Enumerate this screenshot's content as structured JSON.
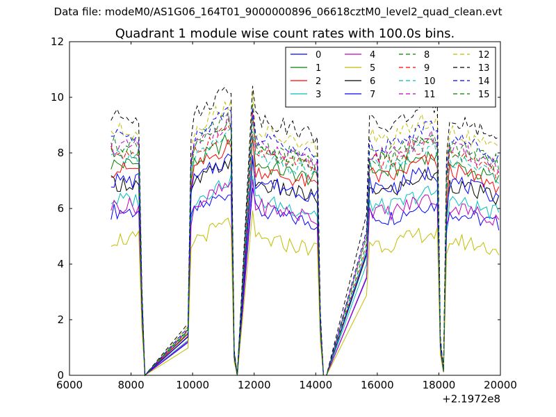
{
  "figure": {
    "suptitle": "Data file: modeM0/AS1G06_164T01_9000000896_06618cztM0_level2_quad_clean.evt"
  },
  "chart_data": {
    "type": "line",
    "title": "Quadrant 1 module wise count rates with 100.0s bins.",
    "xlabel": "",
    "ylabel": "",
    "x_offset_label": "+2.1972e8",
    "xlim": [
      6000,
      20000
    ],
    "ylim": [
      0,
      12
    ],
    "xticks": [
      6000,
      8000,
      10000,
      12000,
      14000,
      16000,
      18000,
      20000
    ],
    "yticks": [
      0,
      2,
      4,
      6,
      8,
      10,
      12
    ],
    "grid": false,
    "legend_position": "top-right",
    "legend_columns": 4,
    "x": [
      7350,
      7450,
      7550,
      7650,
      7750,
      7850,
      7950,
      8050,
      8150,
      8250,
      8350,
      8450,
      9850,
      9950,
      10050,
      10150,
      10250,
      10350,
      10450,
      10550,
      10650,
      10750,
      10850,
      10950,
      11050,
      11150,
      11250,
      11350,
      11450,
      11950,
      12050,
      12150,
      12250,
      12350,
      12450,
      12550,
      12650,
      12750,
      12850,
      12950,
      13050,
      13150,
      13250,
      13350,
      13450,
      13550,
      13650,
      13750,
      13850,
      13950,
      14050,
      14150,
      14250,
      14350,
      15650,
      15750,
      15850,
      15950,
      16050,
      16150,
      16250,
      16350,
      16450,
      16550,
      16650,
      16750,
      16850,
      16950,
      17050,
      17150,
      17250,
      17350,
      17450,
      17550,
      17650,
      17750,
      17850,
      17950,
      18050,
      18150,
      18250,
      18350,
      18450,
      18550,
      18650,
      18750,
      18850,
      18950,
      19050,
      19150,
      19250,
      19350,
      19450,
      19550,
      19650,
      19750,
      19850,
      19950
    ],
    "series": [
      {
        "name": "0",
        "color": "#0000ff",
        "dash": "solid",
        "level": 5.9
      },
      {
        "name": "1",
        "color": "#008000",
        "dash": "solid",
        "level": 7.6
      },
      {
        "name": "2",
        "color": "#ff0000",
        "dash": "solid",
        "level": 7.4
      },
      {
        "name": "3",
        "color": "#00bfbf",
        "dash": "solid",
        "level": 6.3
      },
      {
        "name": "4",
        "color": "#bf00bf",
        "dash": "solid",
        "level": 6.1
      },
      {
        "name": "5",
        "color": "#bfbf00",
        "dash": "solid",
        "level": 4.9
      },
      {
        "name": "6",
        "color": "#000000",
        "dash": "solid",
        "level": 6.9
      },
      {
        "name": "7",
        "color": "#0000ff",
        "dash": "solid",
        "level": 7.0
      },
      {
        "name": "8",
        "color": "#008000",
        "dash": "dashed",
        "level": 8.3
      },
      {
        "name": "9",
        "color": "#ff0000",
        "dash": "dashed",
        "level": 8.0
      },
      {
        "name": "10",
        "color": "#00bfbf",
        "dash": "dashed",
        "level": 7.8
      },
      {
        "name": "11",
        "color": "#bf00bf",
        "dash": "dashed",
        "level": 8.2
      },
      {
        "name": "12",
        "color": "#bfbf00",
        "dash": "dashed",
        "level": 8.8
      },
      {
        "name": "13",
        "color": "#000000",
        "dash": "dashed",
        "level": 9.3
      },
      {
        "name": "14",
        "color": "#0000ff",
        "dash": "dashed",
        "level": 8.6
      },
      {
        "name": "15",
        "color": "#008000",
        "dash": "dashed",
        "level": 8.1
      }
    ]
  }
}
